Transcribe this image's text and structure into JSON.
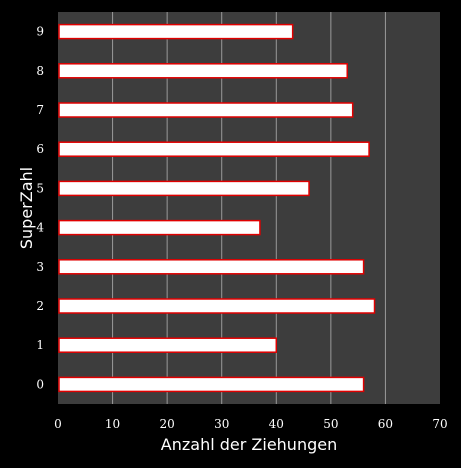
{
  "chart_data": {
    "type": "bar",
    "orientation": "horizontal",
    "title": "",
    "xlabel": "Anzahl der Ziehungen",
    "ylabel": "SuperZahl",
    "categories": [
      "0",
      "1",
      "2",
      "3",
      "4",
      "5",
      "6",
      "7",
      "8",
      "9"
    ],
    "values": [
      56,
      40,
      58,
      56,
      37,
      46,
      57,
      54,
      53,
      43
    ],
    "xlim": [
      0,
      70
    ],
    "xticks": [
      "0",
      "10",
      "20",
      "30",
      "40",
      "50",
      "60",
      "70"
    ],
    "grid": "vertical",
    "legend": "none",
    "colors": {
      "plot_background": "#3d3d3d",
      "page_background": "#000000",
      "bar_fill": "#ffffff",
      "bar_edge": "#e00000",
      "grid": "#9a9a9a",
      "text": "#ffffff"
    }
  }
}
